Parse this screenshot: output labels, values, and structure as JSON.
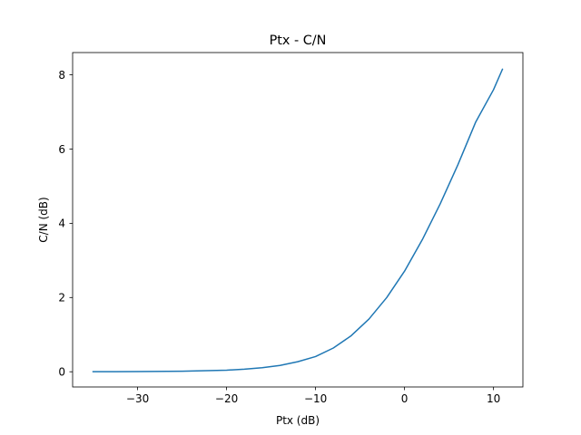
{
  "chart_data": {
    "type": "line",
    "title": "Ptx - C/N",
    "xlabel": "Ptx (dB)",
    "ylabel": "C/N (dB)",
    "xlim": [
      -37.3,
      13.3
    ],
    "ylim": [
      -0.41,
      8.6
    ],
    "xticks": [
      -30,
      -20,
      -10,
      0,
      10
    ],
    "xtick_labels": [
      "−30",
      "−20",
      "−10",
      "0",
      "10"
    ],
    "yticks": [
      0,
      2,
      4,
      6,
      8
    ],
    "ytick_labels": [
      "0",
      "2",
      "4",
      "6",
      "8"
    ],
    "grid": false,
    "legend": "none",
    "series": [
      {
        "color": "#1f77b4",
        "x": [
          -35,
          -30,
          -25,
          -20,
          -18,
          -16,
          -14,
          -12,
          -10,
          -8,
          -6,
          -4,
          -2,
          0,
          2,
          4,
          6,
          8,
          10,
          11
        ],
        "y": [
          0.0014,
          0.0043,
          0.0137,
          0.0432,
          0.068,
          0.108,
          0.17,
          0.27,
          0.41,
          0.64,
          0.97,
          1.42,
          2.0,
          2.71,
          3.56,
          4.52,
          5.58,
          6.73,
          7.6,
          8.15
        ]
      }
    ]
  }
}
